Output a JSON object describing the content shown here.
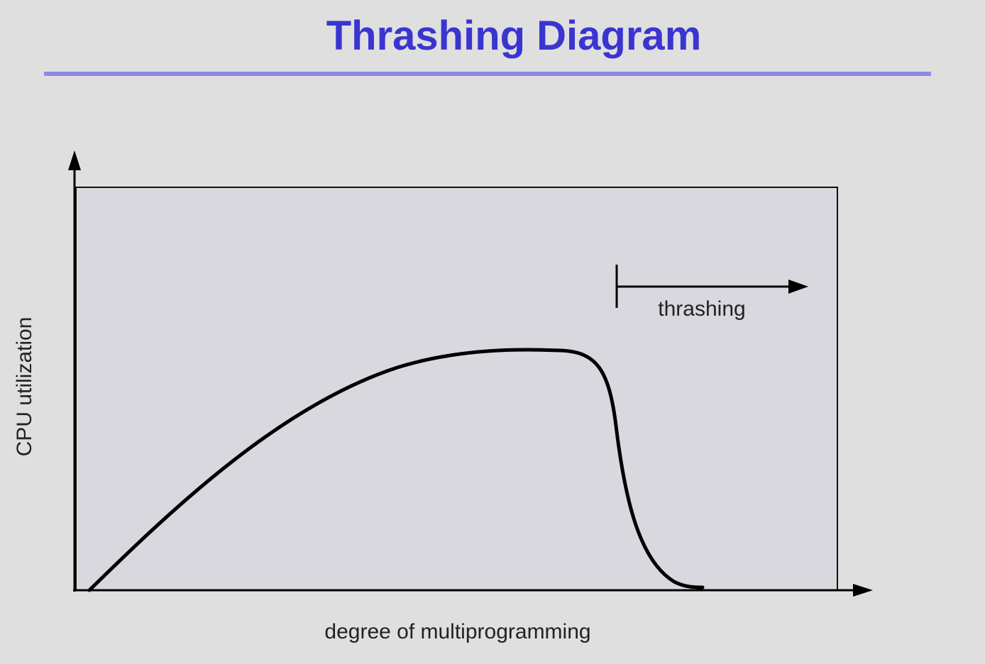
{
  "header": {
    "title": "Thrashing Diagram"
  },
  "diagram": {
    "y_axis_label": "CPU utilization",
    "x_axis_label": "degree of multiprogramming",
    "annotation": "thrashing"
  }
}
